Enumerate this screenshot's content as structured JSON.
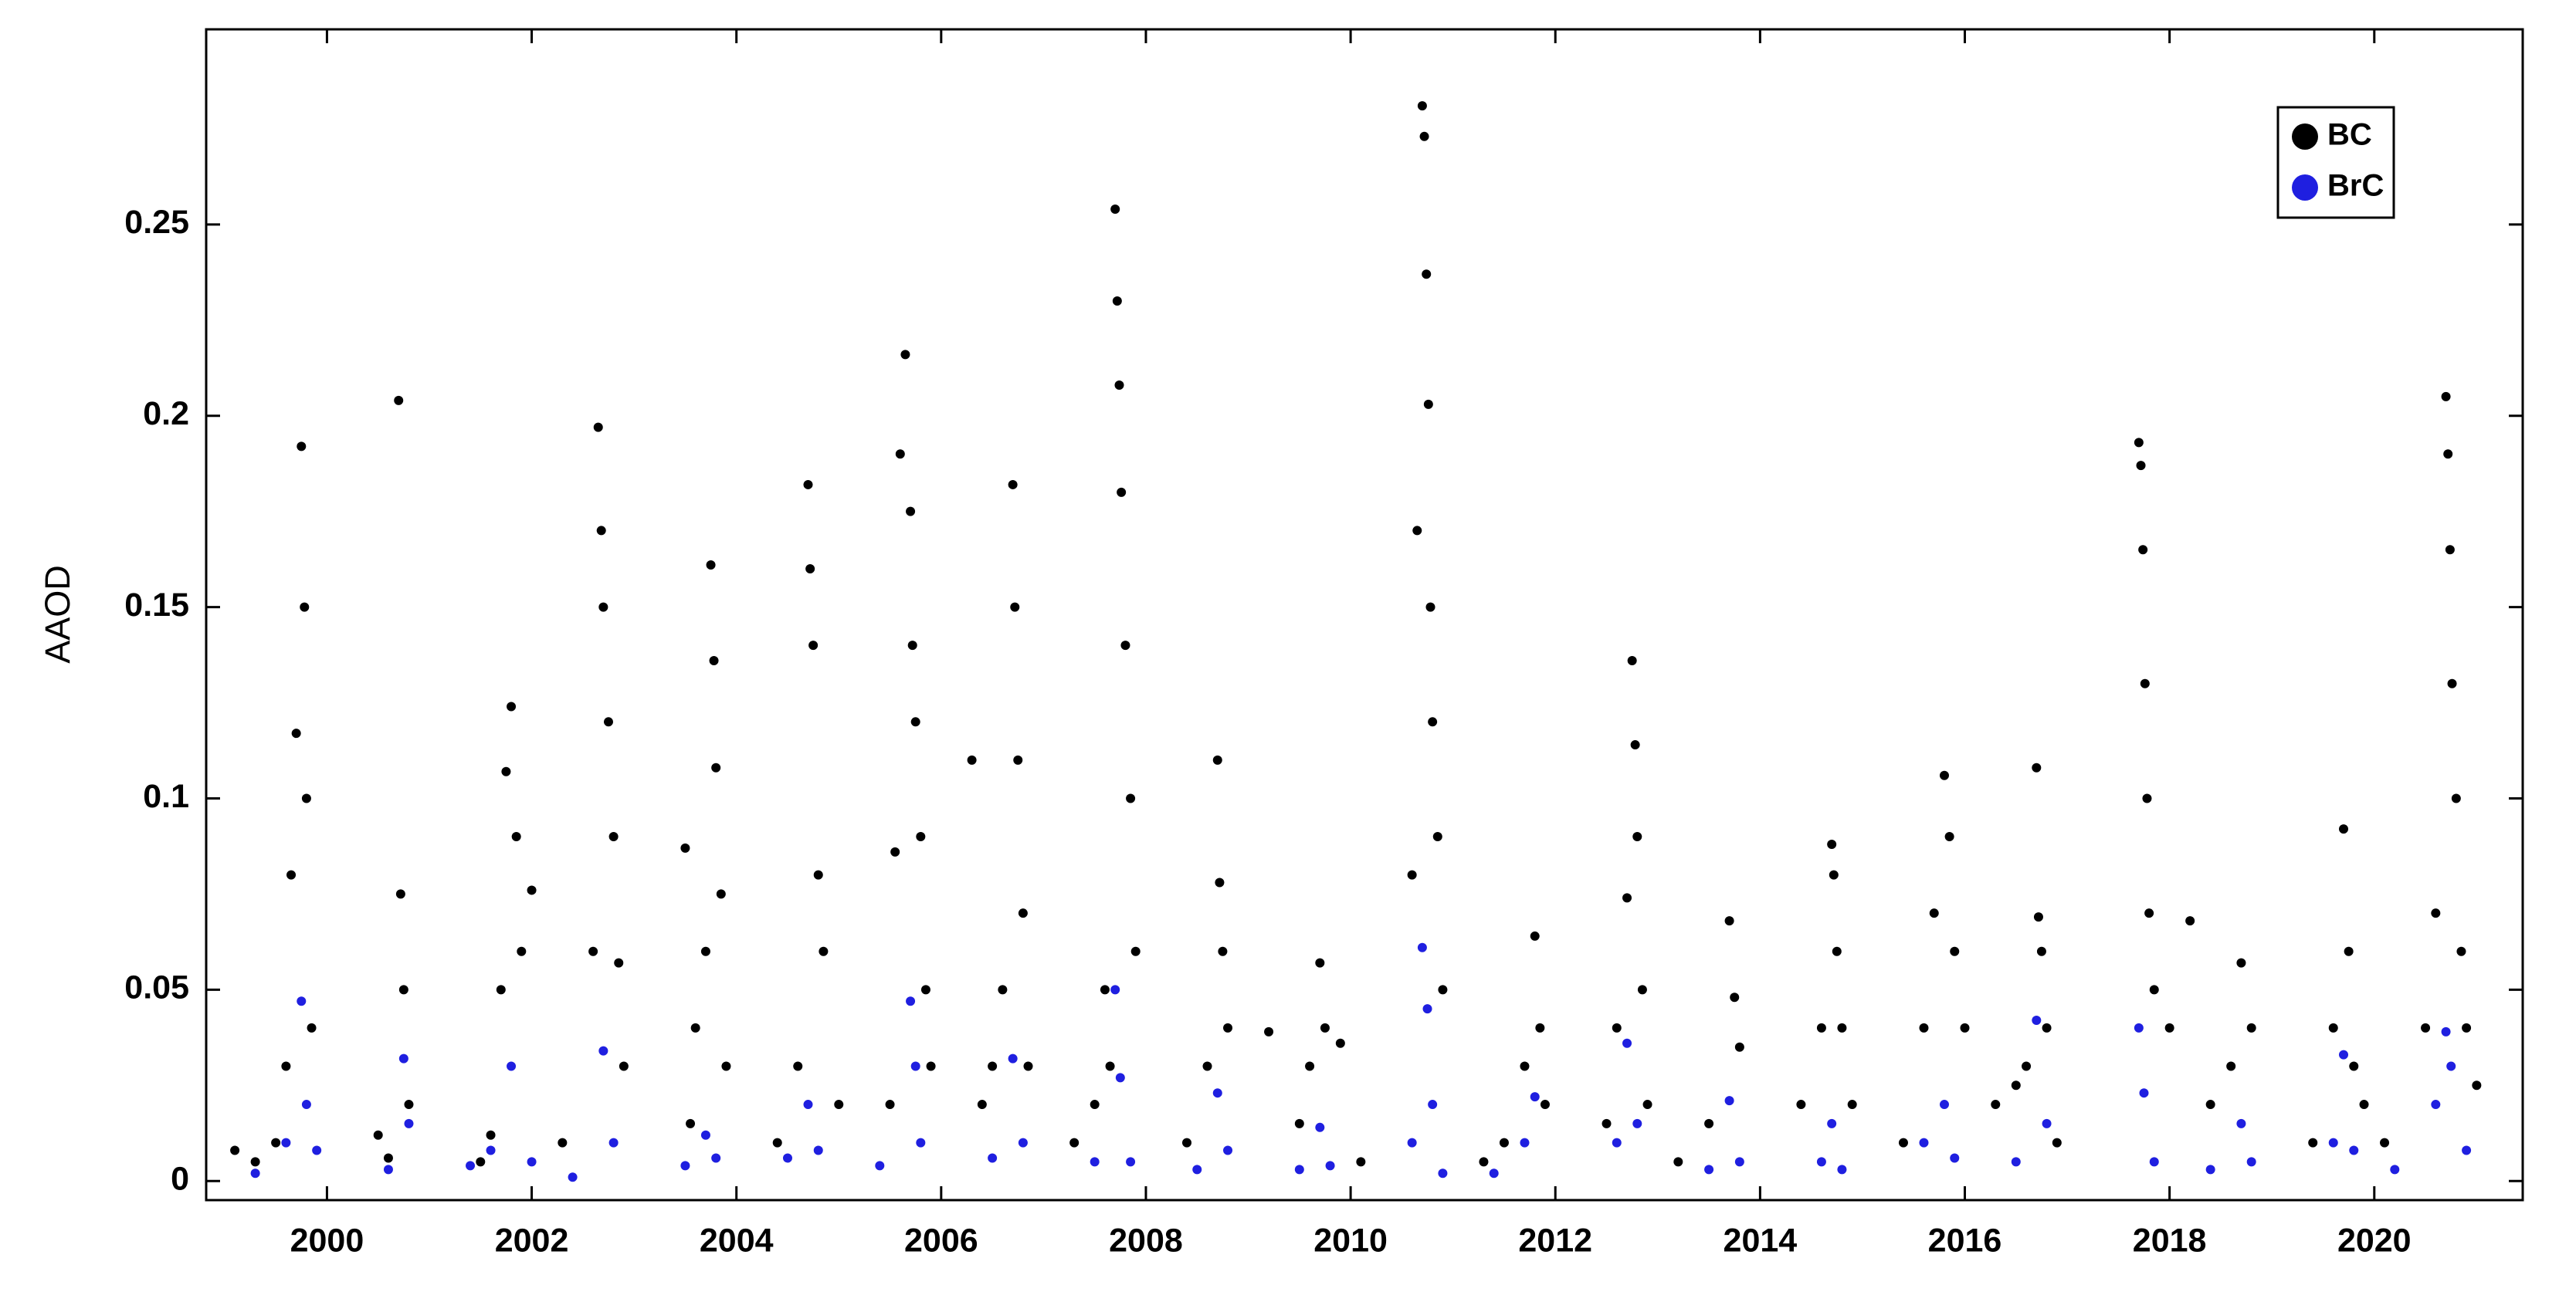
{
  "chart_data": {
    "type": "scatter",
    "y_label": "AAOD",
    "xlim": [
      1998.82,
      2021.45
    ],
    "ylim": [
      -0.005,
      0.301
    ],
    "xticks": [
      2000,
      2002,
      2004,
      2006,
      2008,
      2010,
      2012,
      2014,
      2016,
      2018,
      2020
    ],
    "yticks": [
      0,
      0.05,
      0.1,
      0.15,
      0.2,
      0.25
    ],
    "grid": false,
    "legend_position": "upper right",
    "series": [
      {
        "name": "BC",
        "color": "#000000",
        "x": [
          1999.1,
          1999.3,
          1999.5,
          1999.6,
          1999.65,
          1999.7,
          1999.75,
          1999.78,
          1999.8,
          1999.85,
          2000.5,
          2000.6,
          2000.7,
          2000.72,
          2000.75,
          2000.8,
          2001.5,
          2001.6,
          2001.7,
          2001.75,
          2001.8,
          2001.85,
          2001.9,
          2002.0,
          2002.3,
          2002.6,
          2002.65,
          2002.68,
          2002.7,
          2002.75,
          2002.8,
          2002.85,
          2002.9,
          2003.5,
          2003.6,
          2003.7,
          2003.75,
          2003.78,
          2003.8,
          2003.85,
          2003.9,
          2003.55,
          2004.4,
          2004.6,
          2004.7,
          2004.72,
          2004.75,
          2004.8,
          2004.85,
          2005.0,
          2005.5,
          2005.6,
          2005.65,
          2005.7,
          2005.72,
          2005.75,
          2005.8,
          2005.85,
          2005.9,
          2005.55,
          2006.3,
          2006.4,
          2006.5,
          2006.6,
          2006.7,
          2006.72,
          2006.75,
          2006.8,
          2006.85,
          2007.3,
          2007.5,
          2007.6,
          2007.7,
          2007.72,
          2007.74,
          2007.76,
          2007.8,
          2007.85,
          2007.9,
          2007.65,
          2008.4,
          2008.6,
          2008.7,
          2008.72,
          2008.75,
          2008.8,
          2009.2,
          2009.5,
          2009.6,
          2009.7,
          2009.75,
          2009.9,
          2010.1,
          2010.6,
          2010.65,
          2010.7,
          2010.72,
          2010.74,
          2010.76,
          2010.78,
          2010.8,
          2010.85,
          2010.9,
          2011.3,
          2011.5,
          2011.7,
          2011.8,
          2011.85,
          2011.9,
          2012.5,
          2012.6,
          2012.7,
          2012.75,
          2012.78,
          2012.8,
          2012.85,
          2012.9,
          2013.2,
          2013.5,
          2013.7,
          2013.75,
          2013.8,
          2014.4,
          2014.6,
          2014.7,
          2014.72,
          2014.75,
          2014.8,
          2014.9,
          2015.4,
          2015.6,
          2015.7,
          2015.8,
          2015.85,
          2015.9,
          2016.0,
          2016.3,
          2016.5,
          2016.6,
          2016.7,
          2016.72,
          2016.75,
          2016.8,
          2016.9,
          2017.7,
          2017.72,
          2017.74,
          2017.76,
          2017.78,
          2017.8,
          2017.85,
          2018.0,
          2018.2,
          2018.4,
          2018.6,
          2018.7,
          2018.8,
          2019.4,
          2019.6,
          2019.7,
          2019.75,
          2019.8,
          2019.9,
          2020.1,
          2020.5,
          2020.6,
          2020.7,
          2020.72,
          2020.74,
          2020.76,
          2020.8,
          2020.85,
          2020.9,
          2021.0
        ],
        "values": [
          0.008,
          0.005,
          0.01,
          0.03,
          0.08,
          0.117,
          0.192,
          0.15,
          0.1,
          0.04,
          0.012,
          0.006,
          0.204,
          0.075,
          0.05,
          0.02,
          0.005,
          0.012,
          0.05,
          0.107,
          0.124,
          0.09,
          0.06,
          0.076,
          0.01,
          0.06,
          0.197,
          0.17,
          0.15,
          0.12,
          0.09,
          0.057,
          0.03,
          0.087,
          0.04,
          0.06,
          0.161,
          0.136,
          0.108,
          0.075,
          0.03,
          0.015,
          0.01,
          0.03,
          0.182,
          0.16,
          0.14,
          0.08,
          0.06,
          0.02,
          0.02,
          0.19,
          0.216,
          0.175,
          0.14,
          0.12,
          0.09,
          0.05,
          0.03,
          0.086,
          0.11,
          0.02,
          0.03,
          0.05,
          0.182,
          0.15,
          0.11,
          0.07,
          0.03,
          0.01,
          0.02,
          0.05,
          0.254,
          0.23,
          0.208,
          0.18,
          0.14,
          0.1,
          0.06,
          0.03,
          0.01,
          0.03,
          0.11,
          0.078,
          0.06,
          0.04,
          0.039,
          0.015,
          0.03,
          0.057,
          0.04,
          0.036,
          0.005,
          0.08,
          0.17,
          0.281,
          0.273,
          0.237,
          0.203,
          0.15,
          0.12,
          0.09,
          0.05,
          0.005,
          0.01,
          0.03,
          0.064,
          0.04,
          0.02,
          0.015,
          0.04,
          0.074,
          0.136,
          0.114,
          0.09,
          0.05,
          0.02,
          0.005,
          0.015,
          0.068,
          0.048,
          0.035,
          0.02,
          0.04,
          0.088,
          0.08,
          0.06,
          0.04,
          0.02,
          0.01,
          0.04,
          0.07,
          0.106,
          0.09,
          0.06,
          0.04,
          0.02,
          0.025,
          0.03,
          0.108,
          0.069,
          0.06,
          0.04,
          0.01,
          0.193,
          0.187,
          0.165,
          0.13,
          0.1,
          0.07,
          0.05,
          0.04,
          0.068,
          0.02,
          0.03,
          0.057,
          0.04,
          0.01,
          0.04,
          0.092,
          0.06,
          0.03,
          0.02,
          0.01,
          0.04,
          0.07,
          0.205,
          0.19,
          0.165,
          0.13,
          0.1,
          0.06,
          0.04,
          0.025
        ]
      },
      {
        "name": "BrC",
        "color": "#1f1fe0",
        "x": [
          1999.3,
          1999.6,
          1999.75,
          1999.8,
          1999.9,
          2000.6,
          2000.75,
          2000.8,
          2001.4,
          2001.6,
          2001.8,
          2002.0,
          2002.4,
          2002.7,
          2002.8,
          2003.5,
          2003.7,
          2003.8,
          2004.5,
          2004.7,
          2004.8,
          2005.4,
          2005.7,
          2005.75,
          2005.8,
          2006.5,
          2006.7,
          2006.8,
          2007.5,
          2007.7,
          2007.75,
          2007.85,
          2008.5,
          2008.7,
          2008.8,
          2009.5,
          2009.7,
          2009.8,
          2010.6,
          2010.7,
          2010.75,
          2010.8,
          2010.9,
          2011.4,
          2011.7,
          2011.8,
          2012.6,
          2012.7,
          2012.8,
          2013.5,
          2013.7,
          2013.8,
          2014.6,
          2014.7,
          2014.8,
          2015.6,
          2015.8,
          2015.9,
          2016.5,
          2016.7,
          2016.8,
          2017.7,
          2017.75,
          2017.85,
          2018.4,
          2018.7,
          2018.8,
          2019.6,
          2019.7,
          2019.8,
          2020.2,
          2020.6,
          2020.7,
          2020.75,
          2020.9
        ],
        "values": [
          0.002,
          0.01,
          0.047,
          0.02,
          0.008,
          0.003,
          0.032,
          0.015,
          0.004,
          0.008,
          0.03,
          0.005,
          0.001,
          0.034,
          0.01,
          0.004,
          0.012,
          0.006,
          0.006,
          0.02,
          0.008,
          0.004,
          0.047,
          0.03,
          0.01,
          0.006,
          0.032,
          0.01,
          0.005,
          0.05,
          0.027,
          0.005,
          0.003,
          0.023,
          0.008,
          0.003,
          0.014,
          0.004,
          0.01,
          0.061,
          0.045,
          0.02,
          0.002,
          0.002,
          0.01,
          0.022,
          0.01,
          0.036,
          0.015,
          0.003,
          0.021,
          0.005,
          0.005,
          0.015,
          0.003,
          0.01,
          0.02,
          0.006,
          0.005,
          0.042,
          0.015,
          0.04,
          0.023,
          0.005,
          0.003,
          0.015,
          0.005,
          0.01,
          0.033,
          0.008,
          0.003,
          0.02,
          0.039,
          0.03,
          0.008
        ]
      }
    ]
  }
}
